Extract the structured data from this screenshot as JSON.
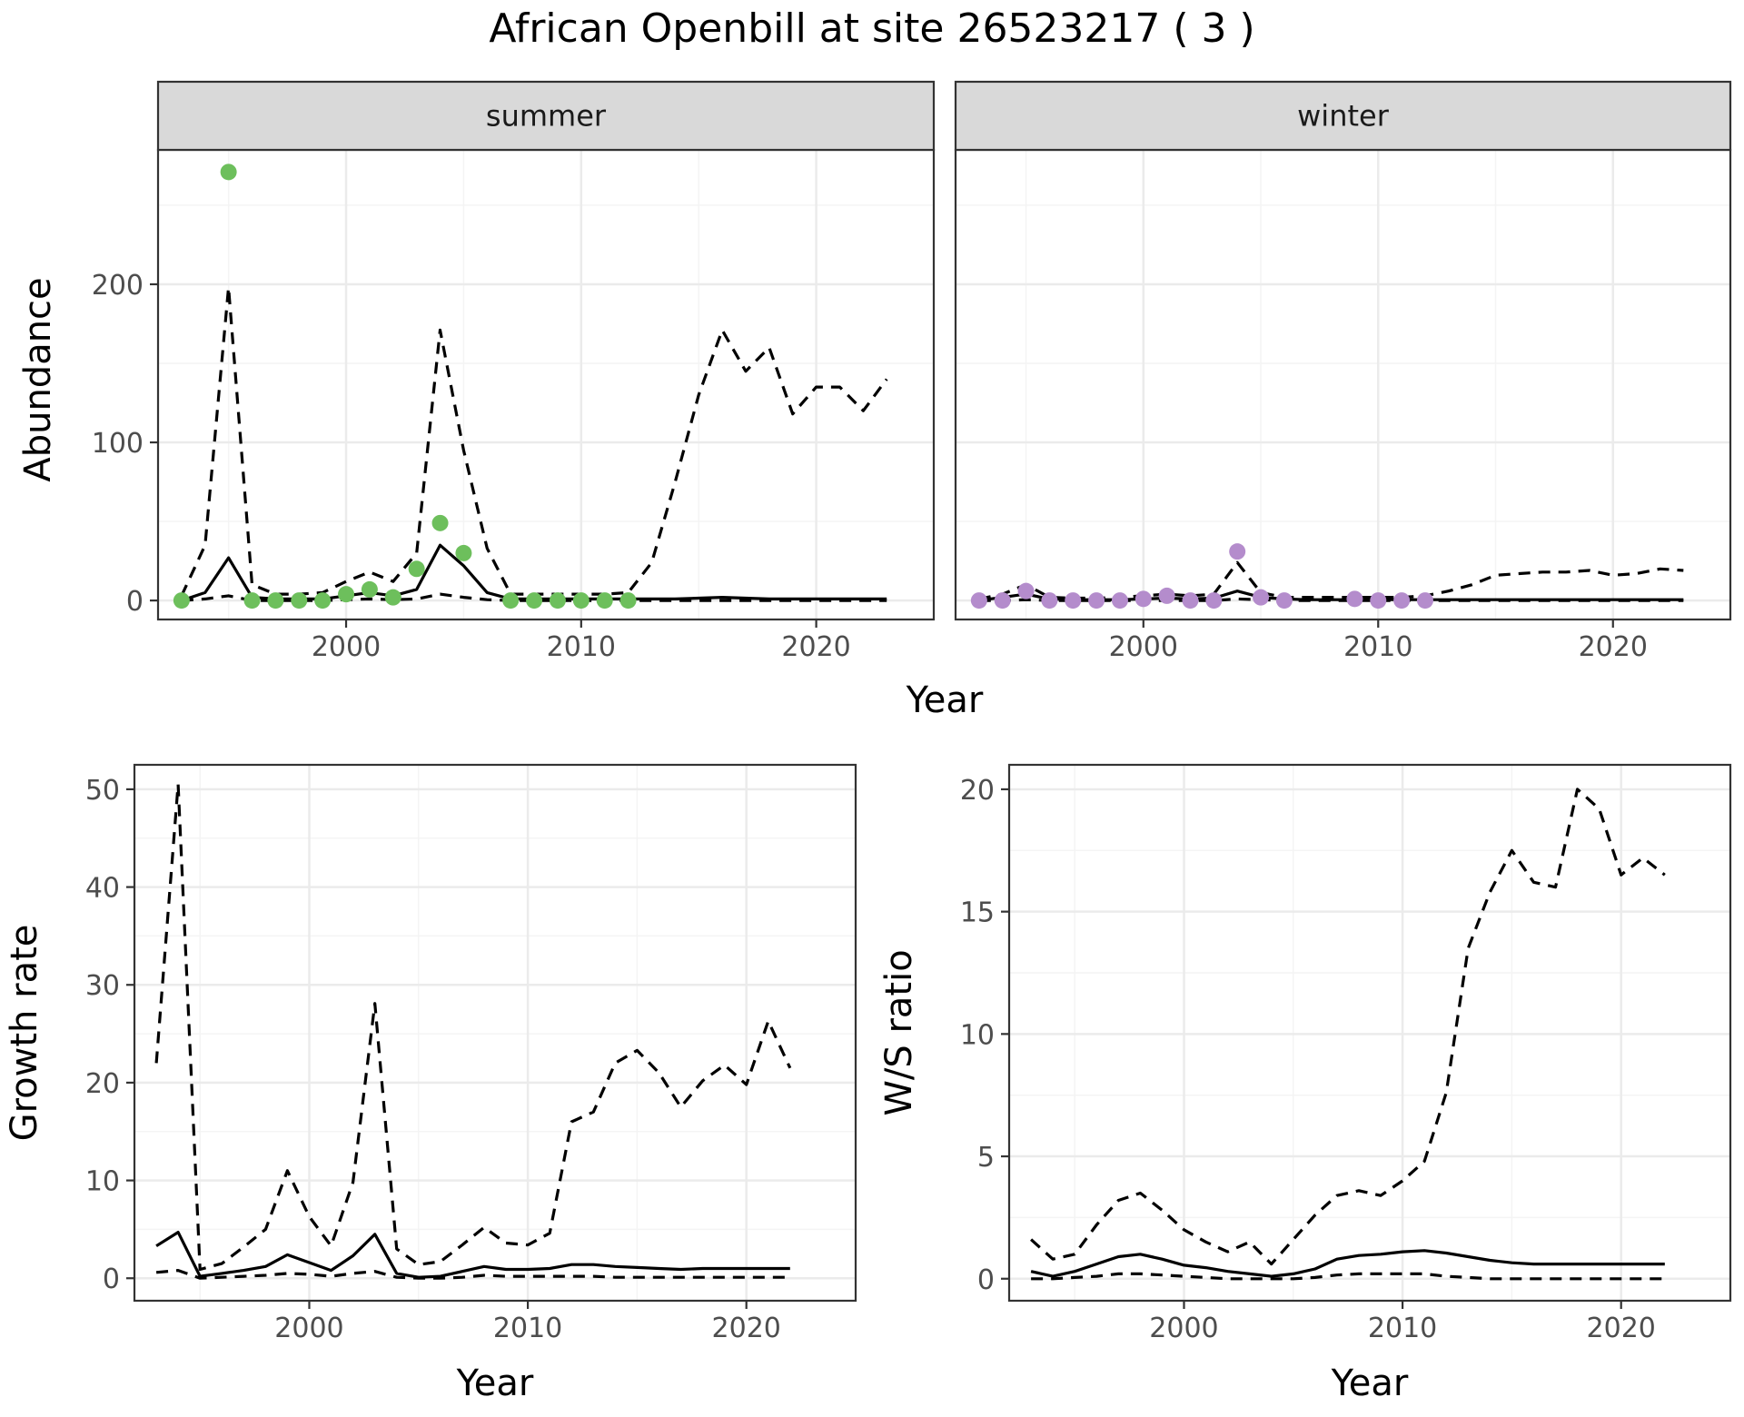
{
  "title": "African Openbill at site 26523217 ( 3 )",
  "colors": {
    "summer_points": "#6dbf5c",
    "winter_points": "#b48ccc",
    "line": "#000000",
    "grid_major": "#ebebeb",
    "grid_minor": "#f4f4f4",
    "strip_fill": "#d9d9d9",
    "axis_text": "#4d4d4d"
  },
  "chart_data": [
    {
      "id": "summer",
      "type": "line",
      "strip_label": "summer",
      "xlabel": "Year",
      "ylabel": "Abundance",
      "xlim": [
        1992,
        2025
      ],
      "ylim": [
        -12,
        285
      ],
      "x_ticks": [
        2000,
        2010,
        2020
      ],
      "y_ticks": [
        0,
        100,
        200
      ],
      "series": [
        {
          "role": "mean",
          "style": "solid",
          "x": [
            1993,
            1994,
            1995,
            1996,
            1997,
            1998,
            1999,
            2000,
            2001,
            2002,
            2003,
            2004,
            2005,
            2006,
            2007,
            2008,
            2009,
            2010,
            2011,
            2012,
            2013,
            2014,
            2015,
            2016,
            2017,
            2018,
            2019,
            2020,
            2021,
            2022,
            2023
          ],
          "values": [
            0,
            5,
            27,
            2,
            1,
            1,
            1,
            3,
            5,
            3,
            7,
            35,
            22,
            5,
            1,
            1,
            1,
            1,
            1,
            1,
            1,
            1,
            1.5,
            2,
            1.5,
            1,
            1,
            1,
            1,
            1,
            1
          ]
        },
        {
          "role": "upper",
          "style": "dashed",
          "x": [
            1993,
            1994,
            1995,
            1996,
            1997,
            1998,
            1999,
            2000,
            2001,
            2002,
            2003,
            2004,
            2005,
            2006,
            2007,
            2008,
            2009,
            2010,
            2011,
            2012,
            2013,
            2014,
            2015,
            2016,
            2017,
            2018,
            2019,
            2020,
            2021,
            2022,
            2023
          ],
          "values": [
            3,
            35,
            198,
            10,
            4,
            4,
            5,
            12,
            18,
            12,
            30,
            171,
            95,
            33,
            4,
            4,
            4,
            4,
            4,
            5,
            24,
            75,
            130,
            171,
            145,
            160,
            118,
            135,
            135,
            120,
            140
          ]
        },
        {
          "role": "lower",
          "style": "dashed",
          "x": [
            1993,
            1994,
            1995,
            1996,
            1997,
            1998,
            1999,
            2000,
            2001,
            2002,
            2003,
            2004,
            2005,
            2006,
            2007,
            2008,
            2009,
            2010,
            2011,
            2012,
            2013,
            2014,
            2015,
            2016,
            2017,
            2018,
            2019,
            2020,
            2021,
            2022,
            2023
          ],
          "values": [
            0,
            1,
            3,
            0,
            0,
            0,
            0,
            0.5,
            1,
            0.5,
            1,
            4,
            2,
            0.5,
            0,
            0,
            0,
            0,
            0,
            0,
            0,
            0,
            0,
            0,
            0,
            0,
            0,
            0,
            0,
            0,
            0
          ]
        },
        {
          "role": "observed",
          "style": "points",
          "x": [
            1993,
            1995,
            1996,
            1997,
            1998,
            1999,
            2000,
            2001,
            2002,
            2003,
            2004,
            2005,
            2007,
            2008,
            2009,
            2010,
            2011,
            2012
          ],
          "values": [
            0,
            271,
            0,
            0,
            0,
            0,
            4,
            7,
            2,
            20,
            49,
            30,
            0,
            0,
            0,
            0,
            0,
            0
          ]
        }
      ]
    },
    {
      "id": "winter",
      "type": "line",
      "strip_label": "winter",
      "xlabel": "Year",
      "ylabel": "Abundance",
      "xlim": [
        1992,
        2025
      ],
      "ylim": [
        -12,
        285
      ],
      "x_ticks": [
        2000,
        2010,
        2020
      ],
      "y_ticks": [
        0,
        100,
        200
      ],
      "series": [
        {
          "role": "mean",
          "style": "solid",
          "x": [
            1993,
            1994,
            1995,
            1996,
            1997,
            1998,
            1999,
            2000,
            2001,
            2002,
            2003,
            2004,
            2005,
            2006,
            2007,
            2008,
            2009,
            2010,
            2011,
            2012,
            2013,
            2014,
            2015,
            2016,
            2017,
            2018,
            2019,
            2020,
            2021,
            2022,
            2023
          ],
          "values": [
            0,
            2,
            4,
            1,
            0.5,
            0.5,
            0.5,
            1,
            1.5,
            1,
            1.5,
            6,
            2,
            1,
            0.5,
            0.5,
            0.5,
            0.5,
            0.5,
            0.5,
            0.5,
            0.5,
            0.5,
            0.5,
            0.5,
            0.5,
            0.5,
            0.5,
            0.5,
            0.5,
            0.5
          ]
        },
        {
          "role": "upper",
          "style": "dashed",
          "x": [
            1993,
            1994,
            1995,
            1996,
            1997,
            1998,
            1999,
            2000,
            2001,
            2002,
            2003,
            2004,
            2005,
            2006,
            2007,
            2008,
            2009,
            2010,
            2011,
            2012,
            2013,
            2014,
            2015,
            2016,
            2017,
            2018,
            2019,
            2020,
            2021,
            2022,
            2023
          ],
          "values": [
            1,
            4,
            10,
            2,
            1.5,
            1.5,
            2,
            3,
            4,
            3,
            4,
            24,
            5,
            2,
            2,
            2,
            2,
            2,
            2,
            3,
            6,
            10,
            16,
            17,
            18,
            18,
            19,
            16,
            17,
            20,
            19
          ]
        },
        {
          "role": "lower",
          "style": "dashed",
          "x": [
            1993,
            1994,
            1995,
            1996,
            1997,
            1998,
            1999,
            2000,
            2001,
            2002,
            2003,
            2004,
            2005,
            2006,
            2007,
            2008,
            2009,
            2010,
            2011,
            2012,
            2013,
            2014,
            2015,
            2016,
            2017,
            2018,
            2019,
            2020,
            2021,
            2022,
            2023
          ],
          "values": [
            0,
            0,
            0.5,
            0,
            0,
            0,
            0,
            0,
            0,
            0,
            0,
            1,
            0.5,
            0,
            0,
            0,
            0,
            0,
            0,
            0,
            0,
            0,
            0,
            0,
            0,
            0,
            0,
            0,
            0,
            0,
            0
          ]
        },
        {
          "role": "observed",
          "style": "points",
          "x": [
            1993,
            1994,
            1995,
            1996,
            1997,
            1998,
            1999,
            2000,
            2001,
            2002,
            2003,
            2004,
            2005,
            2006,
            2009,
            2010,
            2011,
            2012
          ],
          "values": [
            0,
            0,
            6,
            0,
            0,
            0,
            0,
            1,
            3,
            0,
            0,
            31,
            2,
            0,
            1,
            0,
            0,
            0
          ]
        }
      ]
    },
    {
      "id": "growth",
      "type": "line",
      "xlabel": "Year",
      "ylabel": "Growth rate",
      "xlim": [
        1992,
        2025
      ],
      "ylim": [
        -2.3,
        52.5
      ],
      "x_ticks": [
        2000,
        2010,
        2020
      ],
      "y_ticks": [
        0,
        10,
        20,
        30,
        40,
        50
      ],
      "series": [
        {
          "role": "mean",
          "style": "solid",
          "x": [
            1993,
            1994,
            1995,
            1996,
            1997,
            1998,
            1999,
            2000,
            2001,
            2002,
            2003,
            2004,
            2005,
            2006,
            2007,
            2008,
            2009,
            2010,
            2011,
            2012,
            2013,
            2014,
            2015,
            2016,
            2017,
            2018,
            2019,
            2020,
            2021,
            2022
          ],
          "values": [
            3.3,
            4.7,
            0.2,
            0.5,
            0.8,
            1.2,
            2.4,
            1.6,
            0.8,
            2.3,
            4.5,
            0.5,
            0.1,
            0.2,
            0.7,
            1.2,
            0.9,
            0.9,
            1,
            1.4,
            1.4,
            1.2,
            1.1,
            1,
            0.9,
            1,
            1,
            1,
            1,
            1
          ]
        },
        {
          "role": "upper",
          "style": "dashed",
          "x": [
            1993,
            1994,
            1995,
            1996,
            1997,
            1998,
            1999,
            2000,
            2001,
            2002,
            2003,
            2004,
            2005,
            2006,
            2007,
            2008,
            2009,
            2010,
            2011,
            2012,
            2013,
            2014,
            2015,
            2016,
            2017,
            2018,
            2019,
            2020,
            2021,
            2022
          ],
          "values": [
            22,
            50.5,
            0.9,
            1.5,
            3.2,
            5,
            11,
            6.3,
            3.3,
            9.8,
            28.1,
            3,
            1.4,
            1.7,
            3.4,
            5.2,
            3.6,
            3.4,
            4.6,
            16,
            17,
            22,
            23.3,
            21,
            17.5,
            20.2,
            21.8,
            19.8,
            26.3,
            21.5
          ]
        },
        {
          "role": "lower",
          "style": "dashed",
          "x": [
            1993,
            1994,
            1995,
            1996,
            1997,
            1998,
            1999,
            2000,
            2001,
            2002,
            2003,
            2004,
            2005,
            2006,
            2007,
            2008,
            2009,
            2010,
            2011,
            2012,
            2013,
            2014,
            2015,
            2016,
            2017,
            2018,
            2019,
            2020,
            2021,
            2022
          ],
          "values": [
            0.6,
            0.8,
            0,
            0.1,
            0.2,
            0.3,
            0.5,
            0.4,
            0.2,
            0.5,
            0.7,
            0.1,
            0,
            0,
            0.1,
            0.3,
            0.2,
            0.2,
            0.2,
            0.2,
            0.2,
            0.1,
            0.1,
            0.1,
            0.1,
            0.1,
            0.1,
            0.1,
            0.1,
            0.1
          ]
        }
      ]
    },
    {
      "id": "ratio",
      "type": "line",
      "xlabel": "Year",
      "ylabel": "W/S ratio",
      "xlim": [
        1992,
        2025
      ],
      "ylim": [
        -0.9,
        21
      ],
      "x_ticks": [
        2000,
        2010,
        2020
      ],
      "y_ticks": [
        0,
        5,
        10,
        15,
        20
      ],
      "series": [
        {
          "role": "mean",
          "style": "solid",
          "x": [
            1993,
            1994,
            1995,
            1996,
            1997,
            1998,
            1999,
            2000,
            2001,
            2002,
            2003,
            2004,
            2005,
            2006,
            2007,
            2008,
            2009,
            2010,
            2011,
            2012,
            2013,
            2014,
            2015,
            2016,
            2017,
            2018,
            2019,
            2020,
            2021,
            2022
          ],
          "values": [
            0.3,
            0.1,
            0.3,
            0.6,
            0.9,
            1,
            0.8,
            0.55,
            0.45,
            0.3,
            0.2,
            0.1,
            0.2,
            0.4,
            0.8,
            0.95,
            1,
            1.1,
            1.15,
            1.05,
            0.9,
            0.75,
            0.65,
            0.6,
            0.6,
            0.6,
            0.6,
            0.6,
            0.6,
            0.6
          ]
        },
        {
          "role": "upper",
          "style": "dashed",
          "x": [
            1993,
            1994,
            1995,
            1996,
            1997,
            1998,
            1999,
            2000,
            2001,
            2002,
            2003,
            2004,
            2005,
            2006,
            2007,
            2008,
            2009,
            2010,
            2011,
            2012,
            2013,
            2014,
            2015,
            2016,
            2017,
            2018,
            2019,
            2020,
            2021,
            2022
          ],
          "values": [
            1.6,
            0.8,
            1,
            2.2,
            3.2,
            3.5,
            2.8,
            2,
            1.5,
            1.1,
            1.5,
            0.6,
            1.6,
            2.6,
            3.4,
            3.6,
            3.4,
            4,
            4.8,
            7.6,
            13.5,
            15.8,
            17.5,
            16.2,
            16,
            20,
            19.2,
            16.5,
            17.2,
            16.5
          ]
        },
        {
          "role": "lower",
          "style": "dashed",
          "x": [
            1993,
            1994,
            1995,
            1996,
            1997,
            1998,
            1999,
            2000,
            2001,
            2002,
            2003,
            2004,
            2005,
            2006,
            2007,
            2008,
            2009,
            2010,
            2011,
            2012,
            2013,
            2014,
            2015,
            2016,
            2017,
            2018,
            2019,
            2020,
            2021,
            2022
          ],
          "values": [
            0,
            0,
            0.05,
            0.1,
            0.2,
            0.2,
            0.15,
            0.1,
            0.05,
            0,
            0,
            0,
            0,
            0.05,
            0.15,
            0.2,
            0.2,
            0.2,
            0.2,
            0.1,
            0.05,
            0,
            0,
            0,
            0,
            0,
            0,
            0,
            0,
            0
          ]
        }
      ]
    }
  ]
}
